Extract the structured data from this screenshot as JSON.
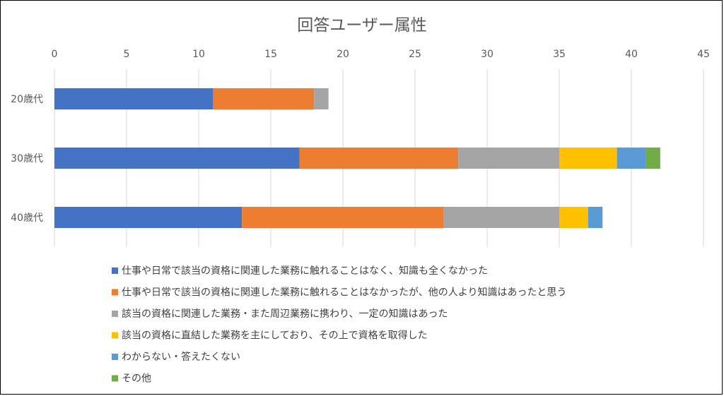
{
  "chart_data": {
    "type": "bar",
    "orientation": "horizontal",
    "stacked": true,
    "title": "回答ユーザー属性",
    "categories": [
      "20歳代",
      "30歳代",
      "40歳代"
    ],
    "xlim": [
      0,
      45
    ],
    "x_ticks": [
      "0",
      "5",
      "10",
      "15",
      "20",
      "25",
      "30",
      "35",
      "40",
      "45"
    ],
    "grid": true,
    "legend_position": "bottom",
    "series": [
      {
        "name": "仕事や日常で該当の資格に関連した業務に触れることはなく、知識も全くなかった",
        "color": "#4472C4",
        "values": [
          11,
          17,
          13
        ]
      },
      {
        "name": "仕事や日常で該当の資格に関連した業務に触れることはなかったが、他の人より知識はあったと思う",
        "color": "#ED7D31",
        "values": [
          7,
          11,
          14
        ]
      },
      {
        "name": "該当の資格に関連した業務・また周辺業務に携わり、一定の知識はあった",
        "color": "#A5A5A5",
        "values": [
          1,
          7,
          8
        ]
      },
      {
        "name": "該当の資格に直結した業務を主にしており、その上で資格を取得した",
        "color": "#FFC000",
        "values": [
          0,
          4,
          2
        ]
      },
      {
        "name": "わからない・答えたくない",
        "color": "#5B9BD5",
        "values": [
          0,
          2,
          1
        ]
      },
      {
        "name": "その他",
        "color": "#70AD47",
        "values": [
          0,
          1,
          0
        ]
      }
    ]
  }
}
